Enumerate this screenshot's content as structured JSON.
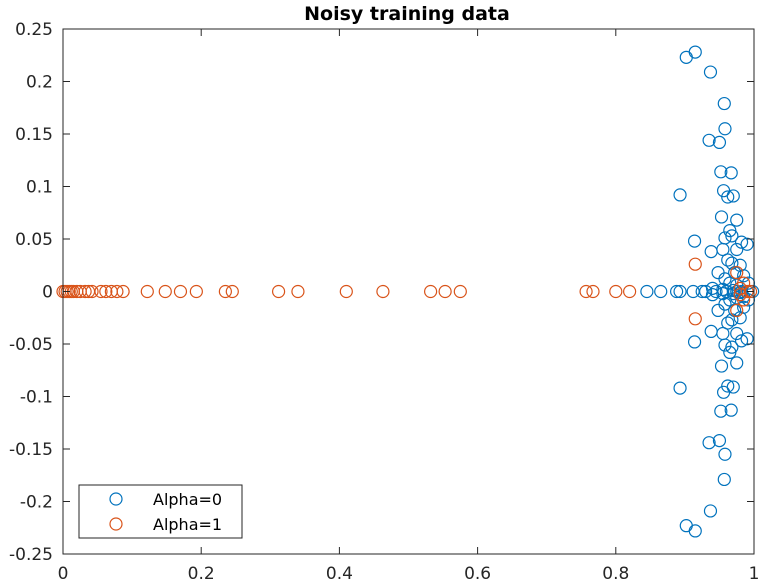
{
  "chart_data": {
    "type": "scatter",
    "title": "Noisy training data",
    "xlabel": "",
    "ylabel": "",
    "xlim": [
      0,
      1
    ],
    "ylim": [
      -0.25,
      0.25
    ],
    "xticks": [
      0,
      0.2,
      0.4,
      0.6,
      0.8,
      1
    ],
    "xtick_labels": [
      "0",
      "0.2",
      "0.4",
      "0.6",
      "0.8",
      "1"
    ],
    "yticks": [
      0.25,
      0.2,
      0.15,
      0.1,
      0.05,
      0,
      -0.05,
      -0.1,
      -0.15,
      -0.2,
      -0.25
    ],
    "ytick_labels": [
      "0.25",
      "0.2",
      "0.15",
      "0.1",
      "0.05",
      "0",
      "-0.05",
      "-0.1",
      "-0.15",
      "-0.2",
      "-0.25"
    ],
    "grid": false,
    "legend_position": "bottom-left",
    "marker": "open-circle",
    "series": [
      {
        "name": "Alpha=0",
        "color": "#0072BD",
        "points": [
          [
            0.902,
            0.223
          ],
          [
            0.915,
            0.228
          ],
          [
            0.937,
            0.209
          ],
          [
            0.957,
            0.179
          ],
          [
            0.958,
            0.155
          ],
          [
            0.935,
            0.144
          ],
          [
            0.95,
            0.142
          ],
          [
            0.952,
            0.114
          ],
          [
            0.967,
            0.113
          ],
          [
            0.893,
            0.092
          ],
          [
            0.956,
            0.096
          ],
          [
            0.962,
            0.09
          ],
          [
            0.97,
            0.091
          ],
          [
            0.953,
            0.071
          ],
          [
            0.975,
            0.068
          ],
          [
            0.965,
            0.058
          ],
          [
            0.968,
            0.053
          ],
          [
            0.958,
            0.051
          ],
          [
            0.914,
            0.048
          ],
          [
            0.982,
            0.047
          ],
          [
            0.938,
            0.038
          ],
          [
            0.955,
            0.04
          ],
          [
            0.975,
            0.04
          ],
          [
            0.99,
            0.045
          ],
          [
            0.962,
            0.03
          ],
          [
            0.968,
            0.027
          ],
          [
            0.98,
            0.025
          ],
          [
            0.948,
            0.018
          ],
          [
            0.972,
            0.018
          ],
          [
            0.985,
            0.015
          ],
          [
            0.958,
            0.012
          ],
          [
            0.965,
            0.008
          ],
          [
            0.975,
            0.006
          ],
          [
            0.992,
            0.008
          ],
          [
            0.94,
            0.003
          ],
          [
            0.955,
            0.002
          ],
          [
            0.97,
            0.001
          ],
          [
            0.982,
            0.0
          ],
          [
            0.998,
            0.0
          ],
          [
            0.845,
            0.0
          ],
          [
            0.865,
            0.0
          ],
          [
            0.888,
            0.0
          ],
          [
            0.893,
            0.0
          ],
          [
            0.912,
            0.0
          ],
          [
            0.925,
            0.0
          ],
          [
            0.93,
            0.0
          ],
          [
            0.945,
            0.0
          ],
          [
            0.96,
            0.0
          ],
          [
            0.975,
            0.0
          ],
          [
            0.98,
            -0.001
          ],
          [
            0.94,
            -0.003
          ],
          [
            0.955,
            -0.002
          ],
          [
            0.97,
            -0.002
          ],
          [
            0.985,
            -0.005
          ],
          [
            0.958,
            -0.012
          ],
          [
            0.965,
            -0.008
          ],
          [
            0.975,
            -0.006
          ],
          [
            0.992,
            -0.008
          ],
          [
            0.948,
            -0.018
          ],
          [
            0.972,
            -0.018
          ],
          [
            0.985,
            -0.015
          ],
          [
            0.962,
            -0.03
          ],
          [
            0.968,
            -0.027
          ],
          [
            0.98,
            -0.025
          ],
          [
            0.938,
            -0.038
          ],
          [
            0.955,
            -0.04
          ],
          [
            0.975,
            -0.04
          ],
          [
            0.99,
            -0.045
          ],
          [
            0.914,
            -0.048
          ],
          [
            0.958,
            -0.051
          ],
          [
            0.965,
            -0.058
          ],
          [
            0.968,
            -0.053
          ],
          [
            0.982,
            -0.047
          ],
          [
            0.953,
            -0.071
          ],
          [
            0.975,
            -0.068
          ],
          [
            0.893,
            -0.092
          ],
          [
            0.956,
            -0.096
          ],
          [
            0.962,
            -0.09
          ],
          [
            0.97,
            -0.091
          ],
          [
            0.952,
            -0.114
          ],
          [
            0.967,
            -0.113
          ],
          [
            0.935,
            -0.144
          ],
          [
            0.95,
            -0.142
          ],
          [
            0.958,
            -0.155
          ],
          [
            0.957,
            -0.179
          ],
          [
            0.937,
            -0.209
          ],
          [
            0.902,
            -0.223
          ],
          [
            0.915,
            -0.228
          ]
        ]
      },
      {
        "name": "Alpha=1",
        "color": "#D95319",
        "points": [
          [
            0.0,
            0.0
          ],
          [
            0.003,
            0.0
          ],
          [
            0.006,
            0.0
          ],
          [
            0.009,
            0.0
          ],
          [
            0.012,
            0.0
          ],
          [
            0.015,
            0.0
          ],
          [
            0.02,
            0.0
          ],
          [
            0.025,
            0.0
          ],
          [
            0.032,
            0.0
          ],
          [
            0.037,
            0.0
          ],
          [
            0.042,
            0.0
          ],
          [
            0.055,
            0.0
          ],
          [
            0.062,
            0.0
          ],
          [
            0.07,
            0.0
          ],
          [
            0.078,
            0.0
          ],
          [
            0.087,
            0.0
          ],
          [
            0.122,
            0.0
          ],
          [
            0.148,
            0.0
          ],
          [
            0.17,
            0.0
          ],
          [
            0.193,
            0.0
          ],
          [
            0.235,
            0.0
          ],
          [
            0.245,
            0.0
          ],
          [
            0.312,
            0.0
          ],
          [
            0.34,
            0.0
          ],
          [
            0.41,
            0.0
          ],
          [
            0.463,
            0.0
          ],
          [
            0.532,
            0.0
          ],
          [
            0.553,
            0.0
          ],
          [
            0.575,
            0.0
          ],
          [
            0.757,
            0.0
          ],
          [
            0.767,
            0.0
          ],
          [
            0.8,
            0.0
          ],
          [
            0.82,
            0.0
          ],
          [
            0.915,
            0.026
          ],
          [
            0.915,
            -0.026
          ],
          [
            0.975,
            0.018
          ],
          [
            0.985,
            0.008
          ],
          [
            0.99,
            0.0
          ],
          [
            0.995,
            0.0
          ],
          [
            0.985,
            -0.008
          ],
          [
            0.975,
            -0.018
          ],
          [
            0.98,
            0.003
          ],
          [
            0.98,
            -0.003
          ]
        ]
      }
    ]
  }
}
